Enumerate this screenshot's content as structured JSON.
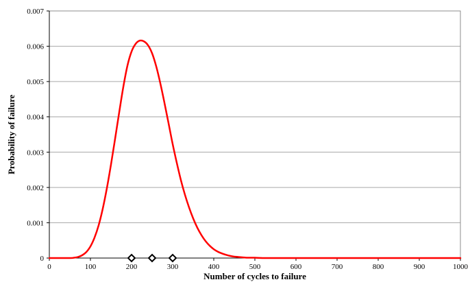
{
  "chart_data": {
    "type": "line",
    "title": "",
    "xlabel": "Number of cycles to failure",
    "ylabel": "Probability of failure",
    "xlim": [
      0,
      1000
    ],
    "ylim": [
      0,
      0.007
    ],
    "x_ticks": [
      0,
      100,
      200,
      300,
      400,
      500,
      600,
      700,
      800,
      900,
      1000
    ],
    "y_ticks": [
      0,
      0.001,
      0.002,
      0.003,
      0.004,
      0.005,
      0.006,
      0.007
    ],
    "x_tick_labels": [
      "0",
      "100",
      "200",
      "300",
      "400",
      "500",
      "600",
      "700",
      "800",
      "900",
      "1000"
    ],
    "y_tick_labels": [
      "0",
      "0.001",
      "0.002",
      "0.003",
      "0.004",
      "0.005",
      "0.006",
      "0.007"
    ],
    "grid": {
      "horizontal": true,
      "vertical": false
    },
    "legend": "none",
    "series": [
      {
        "color": "#ff0000",
        "style": "line",
        "x": [
          0,
          50,
          60,
          70,
          80,
          90,
          100,
          110,
          120,
          130,
          140,
          150,
          160,
          170,
          180,
          190,
          200,
          210,
          220,
          230,
          240,
          250,
          260,
          270,
          280,
          290,
          300,
          310,
          320,
          330,
          340,
          350,
          360,
          370,
          380,
          390,
          400,
          410,
          420,
          430,
          440,
          450,
          460,
          470,
          480,
          490,
          500,
          520,
          540,
          560,
          600,
          700,
          800,
          900,
          1000
        ],
        "y": [
          0,
          0,
          1e-05,
          3e-05,
          8e-05,
          0.00017,
          0.00033,
          0.00058,
          0.00093,
          0.0014,
          0.00198,
          0.00265,
          0.00338,
          0.00413,
          0.00485,
          0.00545,
          0.00585,
          0.00607,
          0.00616,
          0.00614,
          0.00603,
          0.0058,
          0.00543,
          0.00495,
          0.0044,
          0.00382,
          0.00323,
          0.0027,
          0.00221,
          0.00179,
          0.00143,
          0.00112,
          0.00086,
          0.00065,
          0.00048,
          0.00035,
          0.00025,
          0.00018,
          0.00013,
          9e-05,
          6e-05,
          4e-05,
          3e-05,
          2e-05,
          1e-05,
          1e-05,
          1e-05,
          0,
          0,
          0,
          0,
          0,
          0,
          0,
          0
        ]
      },
      {
        "color": "#000000",
        "style": "marker",
        "marker": "diamond",
        "x": [
          200,
          250,
          300
        ],
        "y": [
          0,
          0,
          0
        ]
      }
    ]
  }
}
